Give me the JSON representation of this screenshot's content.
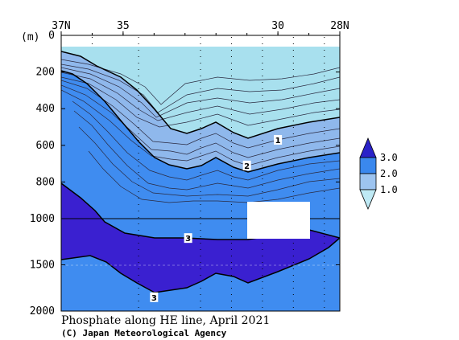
{
  "chart_data": {
    "type": "contour-section",
    "title": "Phosphate along HE line, April 2021",
    "credit": "(C) Japan Meteorological Agency",
    "ylabel": "(m)",
    "x_ticks": [
      {
        "label": "37N",
        "value": 37
      },
      {
        "label": "35",
        "value": 35
      },
      {
        "label": "30",
        "value": 30
      },
      {
        "label": "28N",
        "value": 28
      }
    ],
    "xlim": [
      37,
      28
    ],
    "y_ticks": [
      0,
      200,
      400,
      600,
      800,
      1000,
      1500,
      2000
    ],
    "ylim": [
      0,
      2000
    ],
    "colorbar": {
      "levels": [
        "1.0",
        "2.0",
        "3.0"
      ],
      "colors": [
        "#bfeaf5",
        "#9dc4f0",
        "#3a88ee",
        "#2a22c8"
      ]
    },
    "contour_labels": [
      {
        "label": "1",
        "lat": 30.0,
        "depth": 570
      },
      {
        "label": "2",
        "lat": 31.0,
        "depth": 710
      },
      {
        "label": "3",
        "lat": 32.9,
        "depth": 1210
      },
      {
        "label": "3",
        "lat": 34.0,
        "depth": 1850
      }
    ],
    "colors": {
      "zone_low": "#a8e0ee",
      "zone_mid_low": "#8fb8ec",
      "zone_mid": "#3f8cf0",
      "zone_high": "#3a20d0"
    }
  }
}
